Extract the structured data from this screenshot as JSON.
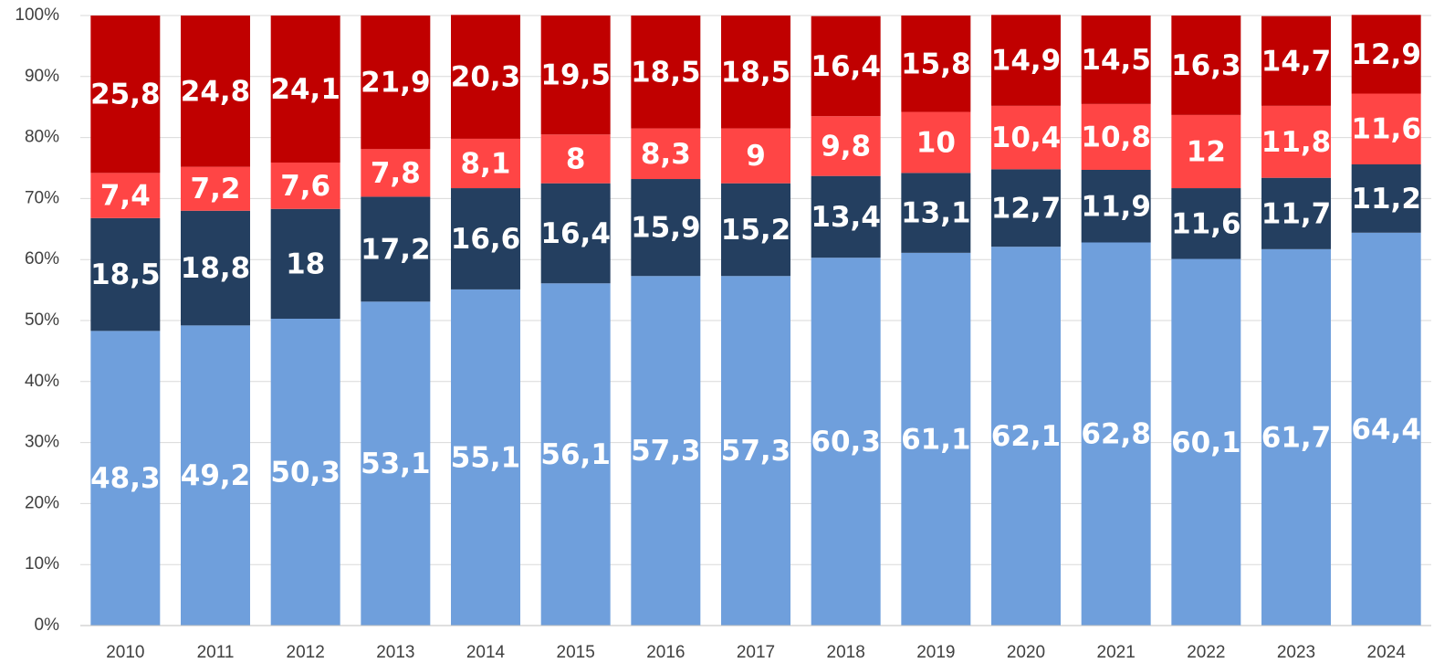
{
  "chart_data": {
    "type": "stacked_bar",
    "categories": [
      "2010",
      "2011",
      "2012",
      "2013",
      "2014",
      "2015",
      "2016",
      "2017",
      "2018",
      "2019",
      "2020",
      "2021",
      "2022",
      "2023",
      "2024"
    ],
    "series": [
      {
        "color": "#6f9fdc",
        "values": [
          48.3,
          49.2,
          50.3,
          53.1,
          55.1,
          56.1,
          57.3,
          57.3,
          60.3,
          61.1,
          62.1,
          62.8,
          60.1,
          61.7,
          64.4
        ],
        "value_labels": [
          "48,3",
          "49,2",
          "50,3",
          "53,1",
          "55,1",
          "56,1",
          "57,3",
          "57,3",
          "60,3",
          "61,1",
          "62,1",
          "62,8",
          "60,1",
          "61,7",
          "64,4"
        ]
      },
      {
        "color": "#243f60",
        "values": [
          18.5,
          18.8,
          18,
          17.2,
          16.6,
          16.4,
          15.9,
          15.2,
          13.4,
          13.1,
          12.7,
          11.9,
          11.6,
          11.7,
          11.2
        ],
        "value_labels": [
          "18,5",
          "18,8",
          "18",
          "17,2",
          "16,6",
          "16,4",
          "15,9",
          "15,2",
          "13,4",
          "13,1",
          "12,7",
          "11,9",
          "11,6",
          "11,7",
          "11,2"
        ]
      },
      {
        "color": "#ff4545",
        "values": [
          7.4,
          7.2,
          7.6,
          7.8,
          8.1,
          8,
          8.3,
          9,
          9.8,
          10,
          10.4,
          10.8,
          12,
          11.8,
          11.6
        ],
        "value_labels": [
          "7,4",
          "7,2",
          "7,6",
          "7,8",
          "8,1",
          "8",
          "8,3",
          "9",
          "9,8",
          "10",
          "10,4",
          "10,8",
          "12",
          "11,8",
          "11,6"
        ]
      },
      {
        "color": "#c00000",
        "values": [
          25.8,
          24.8,
          24.1,
          21.9,
          20.3,
          19.5,
          18.5,
          18.5,
          16.4,
          15.8,
          14.9,
          14.5,
          16.3,
          14.7,
          12.9
        ],
        "value_labels": [
          "25,8",
          "24,8",
          "24,1",
          "21,9",
          "20,3",
          "19,5",
          "18,5",
          "18,5",
          "16,4",
          "15,8",
          "14,9",
          "14,5",
          "16,3",
          "14,7",
          "12,9"
        ]
      }
    ],
    "ylim": [
      0,
      100
    ],
    "yticks": [
      {
        "value": 0,
        "label": "0%"
      },
      {
        "value": 10,
        "label": "10%"
      },
      {
        "value": 20,
        "label": "20%"
      },
      {
        "value": 30,
        "label": "30%"
      },
      {
        "value": 40,
        "label": "40%"
      },
      {
        "value": 50,
        "label": "50%"
      },
      {
        "value": 60,
        "label": "60%"
      },
      {
        "value": 70,
        "label": "70%"
      },
      {
        "value": 80,
        "label": "80%"
      },
      {
        "value": 90,
        "label": "90%"
      },
      {
        "value": 100,
        "label": "100%"
      }
    ],
    "grid": true
  }
}
